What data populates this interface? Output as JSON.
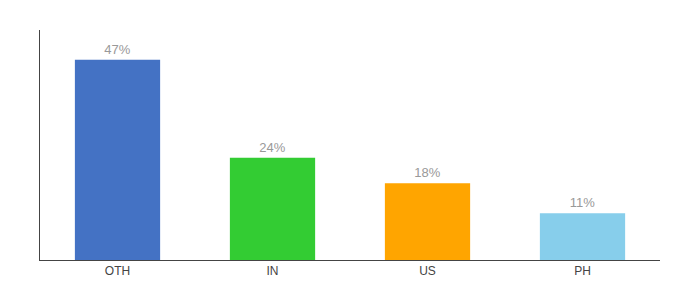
{
  "chart_data": {
    "type": "bar",
    "categories": [
      "OTH",
      "IN",
      "US",
      "PH"
    ],
    "values": [
      47,
      24,
      18,
      11
    ],
    "value_labels": [
      "47%",
      "24%",
      "18%",
      "11%"
    ],
    "data_labels": true,
    "colors": [
      "#4472C4",
      "#33CC33",
      "#FFA500",
      "#87CEEB"
    ],
    "ylim": [
      0,
      54
    ],
    "tick_labels": "x",
    "grid": false
  }
}
